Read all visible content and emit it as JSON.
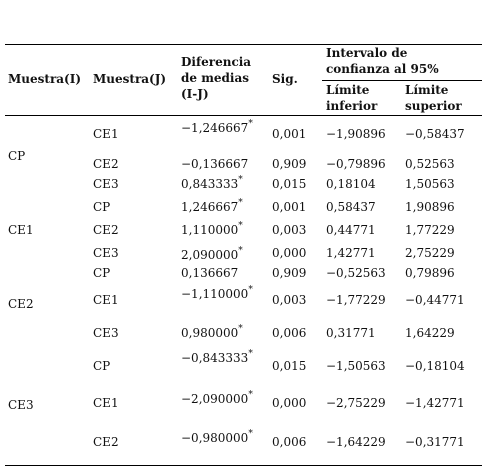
{
  "header": {
    "muestra_i": "Muestra(I)",
    "muestra_j": "Muestra(J)",
    "diferencia": "Diferencia de medias (I-J)",
    "sig": "Sig.",
    "intervalo": "Intervalo de confianza al 95%",
    "inferior": "Límite inferior",
    "superior": "Límite superior"
  },
  "groups": [
    "CP",
    "CE1",
    "CE2",
    "CE3"
  ],
  "rows": [
    {
      "j": "CE1",
      "diff": "−1,246667",
      "mark": "*",
      "sig": "0,001",
      "lower": "−1,90896",
      "upper": "−0,58437"
    },
    {
      "j": "CE2",
      "diff": "−0,136667",
      "sig": "0,909",
      "lower": "−0,79896",
      "upper": "0,52563"
    },
    {
      "j": "CE3",
      "diff": "0,843333",
      "mark": "*",
      "sig": "0,015",
      "lower": "0,18104",
      "upper": "1,50563"
    },
    {
      "j": "CP",
      "diff": "1,246667",
      "mark": "*",
      "sig": "0,001",
      "lower": "0,58437",
      "upper": "1,90896"
    },
    {
      "j": "CE2",
      "diff": "1,110000",
      "mark": "*",
      "sig": "0,003",
      "lower": "0,44771",
      "upper": "1,77229"
    },
    {
      "j": "CE3",
      "diff": "2,090000",
      "mark": "*",
      "sig": "0,000",
      "lower": "1,42771",
      "upper": "2,75229"
    },
    {
      "j": "CP",
      "diff": "0,136667",
      "sig": "0,909",
      "lower": "−0,52563",
      "upper": "0,79896"
    },
    {
      "j": "CE1",
      "diff": "−1,110000",
      "mark": "*",
      "sig": "0,003",
      "lower": "−1,77229",
      "upper": "−0,44771"
    },
    {
      "j": "CE3",
      "diff": "0,980000",
      "mark": "*",
      "sig": "0,006",
      "lower": "0,31771",
      "upper": "1,64229"
    },
    {
      "j": "CP",
      "diff": "−0,843333",
      "mark": "*",
      "sig": "0,015",
      "lower": "−1,50563",
      "upper": "−0,18104"
    },
    {
      "j": "CE1",
      "diff": "−2,090000",
      "mark": "*",
      "sig": "0,000",
      "lower": "−2,75229",
      "upper": "−1,42771"
    },
    {
      "j": "CE2",
      "diff": "−0,980000",
      "mark": "*",
      "sig": "0,006",
      "lower": "−1,64229",
      "upper": "−0,31771"
    }
  ]
}
